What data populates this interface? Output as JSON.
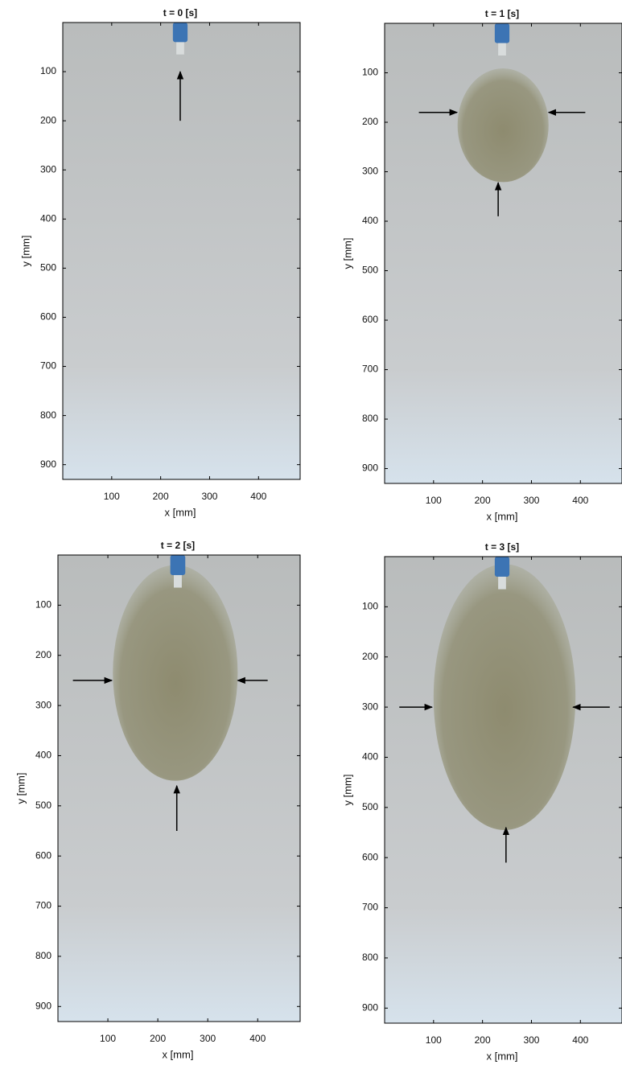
{
  "panels": [
    {
      "title": "t = 0 [s]",
      "xlabel": "x [mm]",
      "ylabel": "y [mm]",
      "xlim": [
        0,
        485
      ],
      "ylim": [
        0,
        930
      ],
      "xticks": [
        100,
        200,
        300,
        400
      ],
      "yticks": [
        100,
        200,
        300,
        400,
        500,
        600,
        700,
        800,
        900
      ]
    },
    {
      "title": "t = 1 [s]",
      "xlabel": "x [mm]",
      "ylabel": "y [mm]",
      "xlim": [
        0,
        485
      ],
      "ylim": [
        0,
        930
      ],
      "xticks": [
        100,
        200,
        300,
        400
      ],
      "yticks": [
        100,
        200,
        300,
        400,
        500,
        600,
        700,
        800,
        900
      ]
    },
    {
      "title": "t = 2 [s]",
      "xlabel": "x [mm]",
      "ylabel": "y [mm]",
      "xlim": [
        0,
        485
      ],
      "ylim": [
        0,
        930
      ],
      "xticks": [
        100,
        200,
        300,
        400
      ],
      "yticks": [
        100,
        200,
        300,
        400,
        500,
        600,
        700,
        800,
        900
      ]
    },
    {
      "title": "t = 3 [s]",
      "xlabel": "x [mm]",
      "ylabel": "y [mm]",
      "xlim": [
        0,
        485
      ],
      "ylim": [
        0,
        930
      ],
      "xticks": [
        100,
        200,
        300,
        400
      ],
      "yticks": [
        100,
        200,
        300,
        400,
        500,
        600,
        700,
        800,
        900
      ]
    }
  ]
}
